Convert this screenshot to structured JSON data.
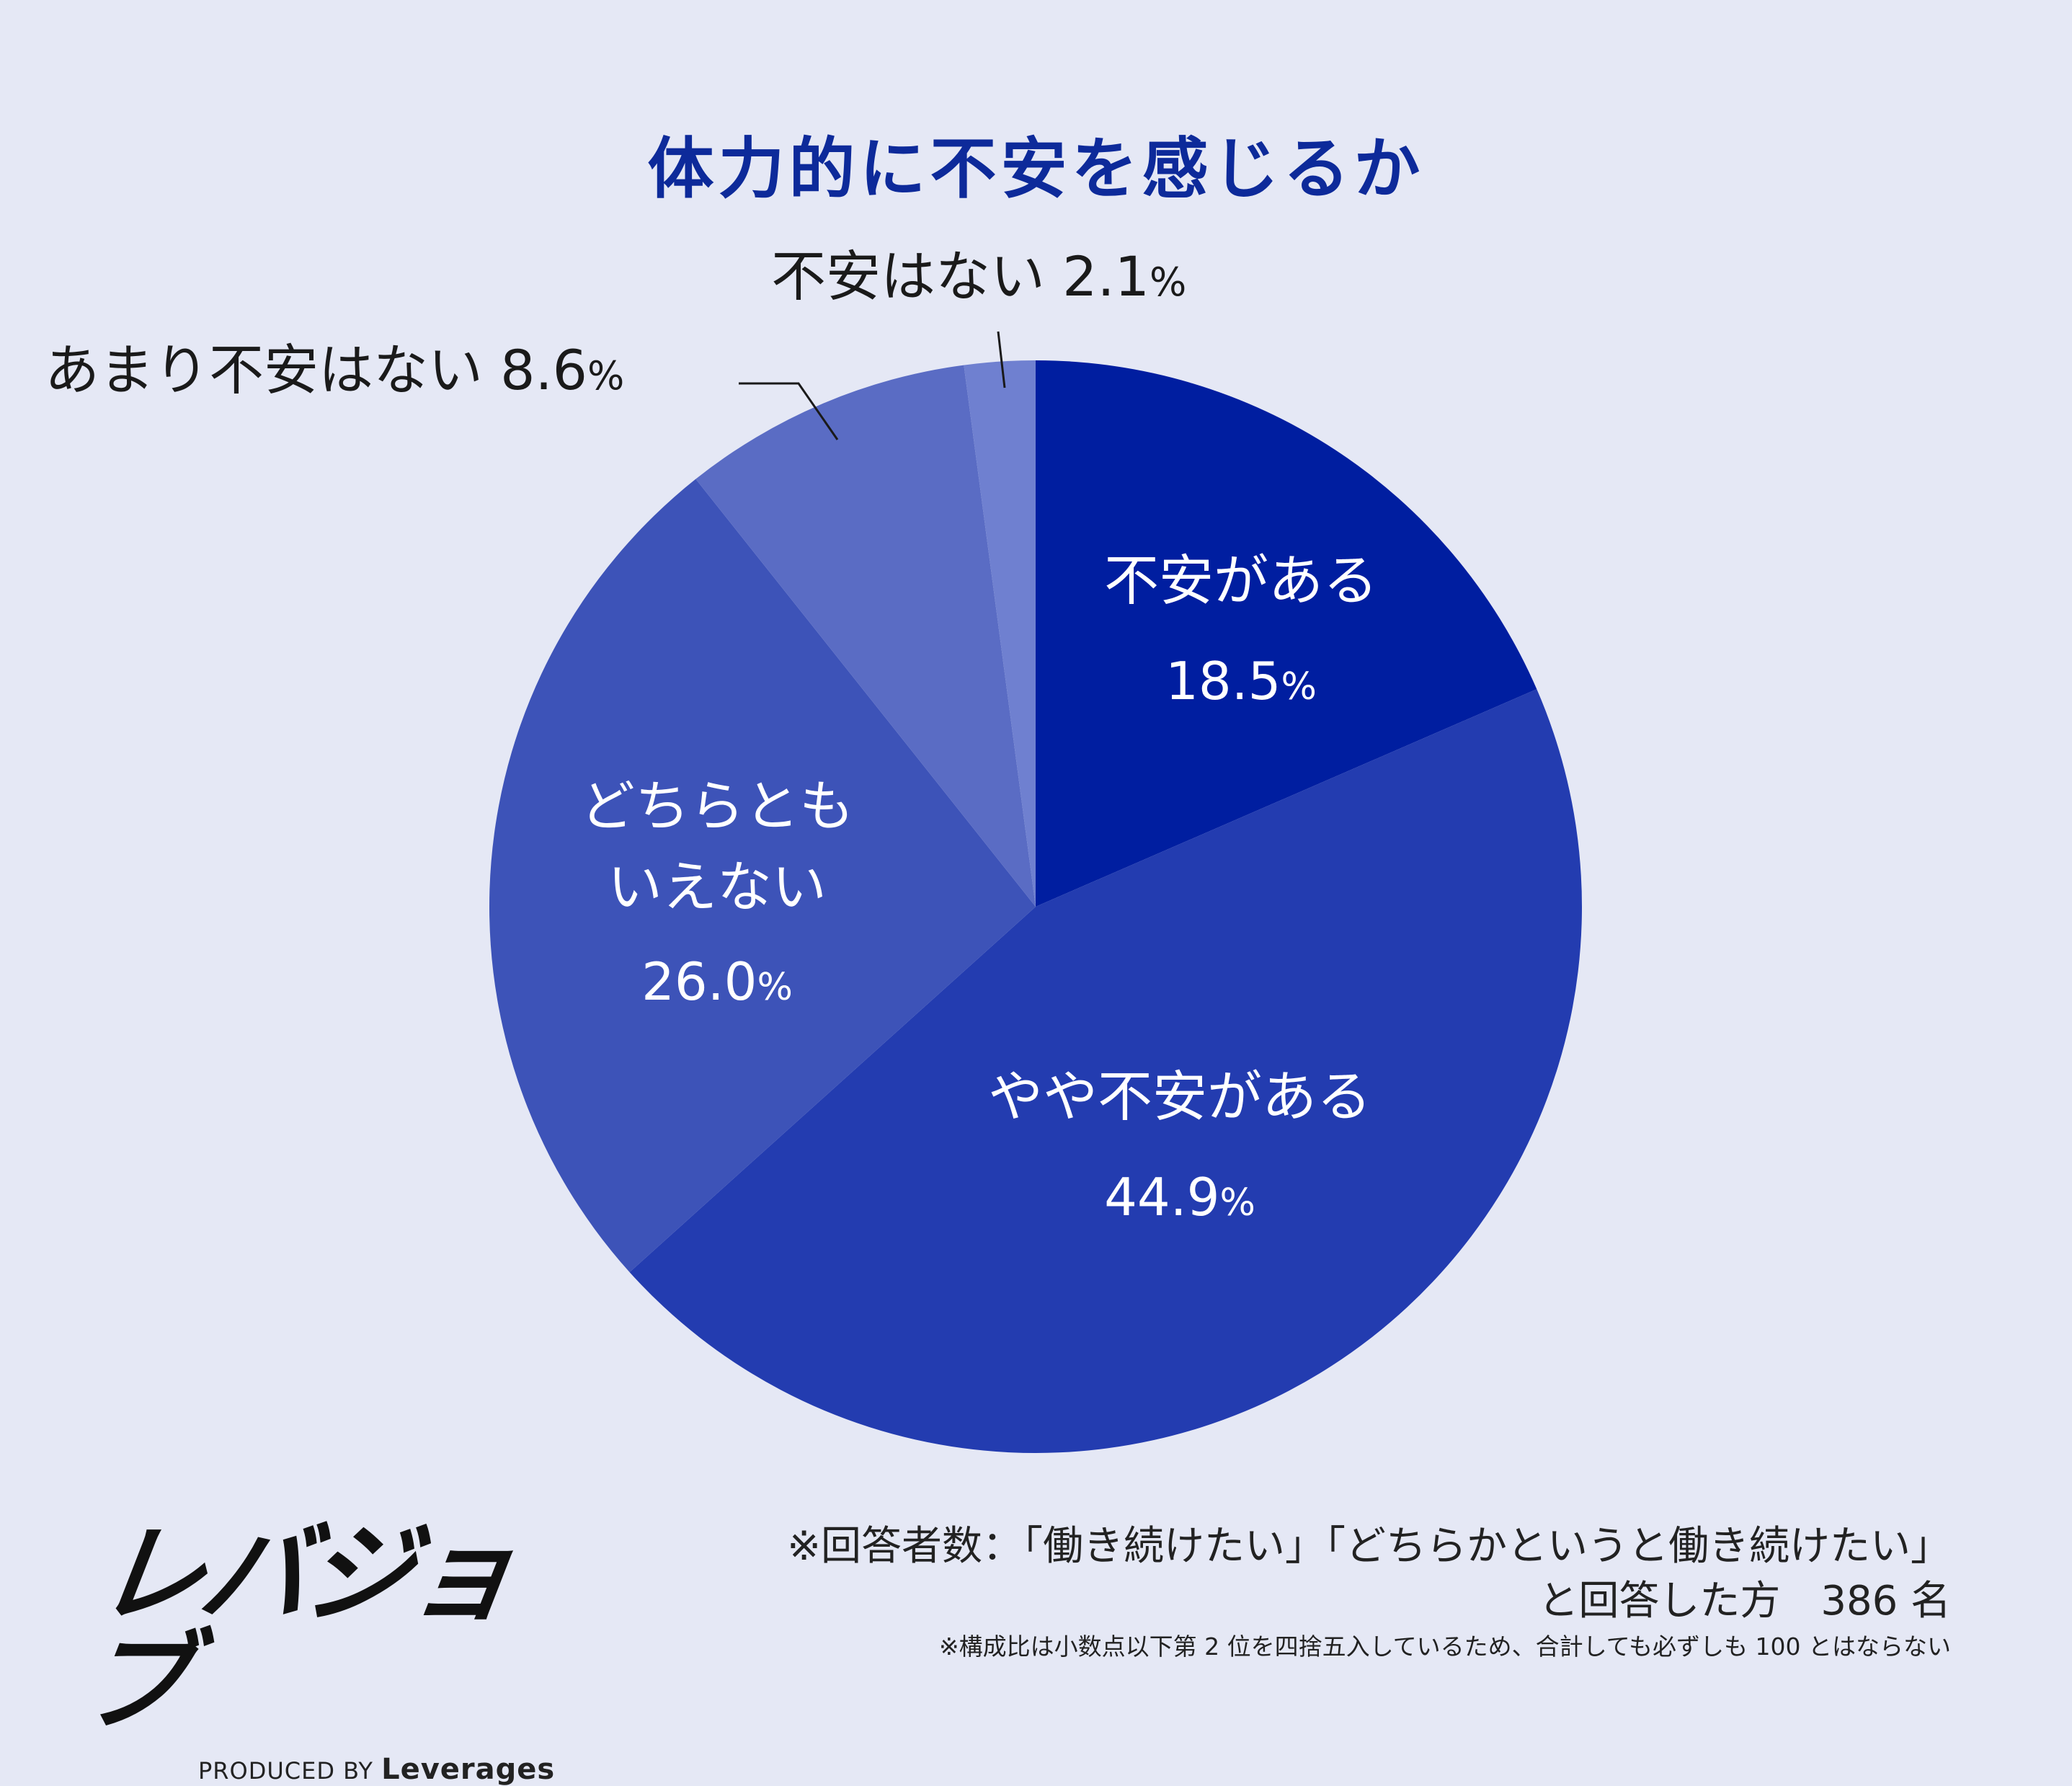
{
  "chart_data": {
    "type": "pie",
    "title": "体力的に不安を感じるか",
    "start": "top",
    "direction": "clockwise",
    "slices": [
      {
        "label_lines": [
          "不安がある"
        ],
        "value": 18.5,
        "value_text": "18.5",
        "unit": "%",
        "color": "#001ea0",
        "label_position": "inside"
      },
      {
        "label_lines": [
          "やや不安がある"
        ],
        "value": 44.9,
        "value_text": "44.9",
        "unit": "%",
        "color": "#233cb0",
        "label_position": "inside"
      },
      {
        "label_lines": [
          "どちらとも",
          "いえない"
        ],
        "value": 26.0,
        "value_text": "26.0",
        "unit": "%",
        "color": "#3d53b8",
        "label_position": "inside"
      },
      {
        "label_lines": [
          "あまり不安はない"
        ],
        "value": 8.6,
        "value_text": "8.6",
        "unit": "%",
        "color": "#5a6cc4",
        "label_position": "outside"
      },
      {
        "label_lines": [
          "不安はない"
        ],
        "value": 2.1,
        "value_text": "2.1",
        "unit": "%",
        "color": "#6f80d0",
        "label_position": "outside"
      }
    ]
  },
  "footer": {
    "logo": "レバジョブ",
    "produced_by": "PRODUCED BY",
    "brand": "Leverages",
    "respondents_line1": "※回答者数：「働き続けたい」「どちらかというと働き続けたい」",
    "respondents_line2": "と回答した方　386 名",
    "rounding_note": "※構成比は小数点以下第 2 位を四捨五入しているため、合計しても必ずしも 100 とはならない"
  }
}
